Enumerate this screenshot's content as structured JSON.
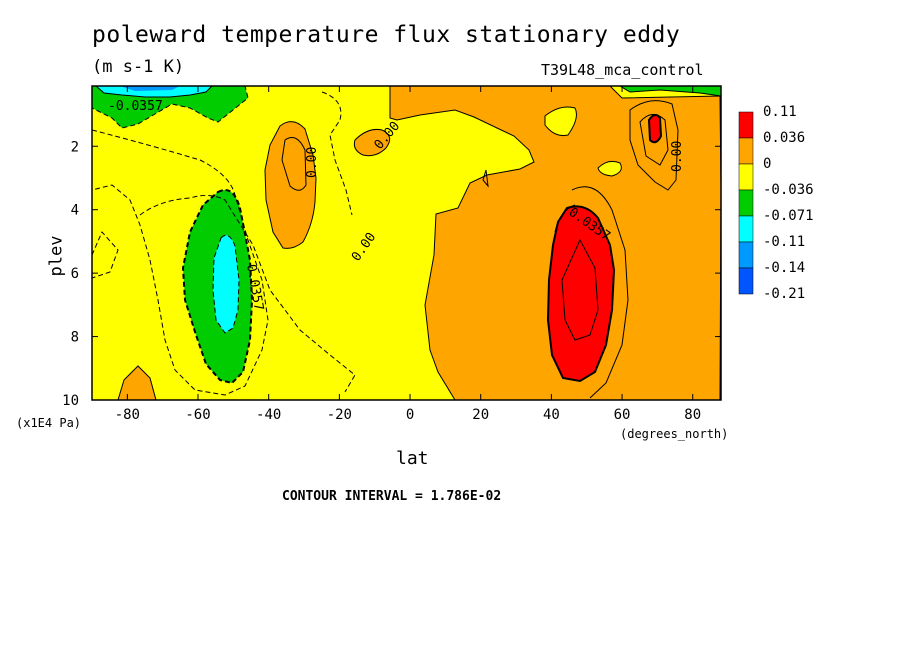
{
  "chart_data": {
    "type": "heatmap",
    "title": "poleward temperature flux stationary eddy",
    "units": "(m s-1 K)",
    "dataset": "T39L48_mca_control",
    "xlabel": "lat",
    "xunit": "(degrees_north)",
    "ylabel": "plev",
    "yunit": "(x1E4 Pa)",
    "xlim": [
      -90,
      88
    ],
    "ylim": [
      10,
      0.1
    ],
    "x_ticks": [
      "-80",
      "-60",
      "-40",
      "-20",
      "0",
      "20",
      "40",
      "60",
      "80"
    ],
    "y_ticks": [
      "2",
      "4",
      "6",
      "8",
      "10"
    ],
    "contour_interval": "CONTOUR INTERVAL = 1.786E-02",
    "contour_labels": [
      "-0.0357",
      "0.00",
      "0.00",
      "0.00",
      "0.00",
      "0.0357",
      "0.0357"
    ],
    "legend": {
      "placement": "right",
      "levels": [
        "0.11",
        "0.036",
        "0",
        "-0.036",
        "-0.071",
        "-0.11",
        "-0.14",
        "-0.21"
      ],
      "colors": [
        "#ff0000",
        "#ffa500",
        "#ffff00",
        "#00cc00",
        "#00ffff",
        "#0099ff",
        "#0055ff",
        "#000000"
      ]
    },
    "regions": [
      {
        "label": "positive core SH",
        "x": [
          -36,
          -26
        ],
        "y": [
          1.5,
          4.8
        ],
        "value": 0.036
      },
      {
        "label": "negative core SH",
        "x": [
          -60,
          -43
        ],
        "y": [
          3.5,
          9.5
        ],
        "value": -0.071
      },
      {
        "label": "negative max SH",
        "x": [
          -53,
          -47
        ],
        "y": [
          5.2,
          7.7
        ],
        "value": -0.11
      },
      {
        "label": "positive NH broad",
        "x": [
          5,
          88
        ],
        "y": [
          0.1,
          10
        ],
        "value": 0.036
      },
      {
        "label": "positive max NH",
        "x": [
          40,
          56
        ],
        "y": [
          4,
          9.3
        ],
        "value": 0.11
      },
      {
        "label": "positive max NH upper",
        "x": [
          67,
          71
        ],
        "y": [
          1.1,
          2
        ],
        "value": 0.11
      }
    ]
  }
}
